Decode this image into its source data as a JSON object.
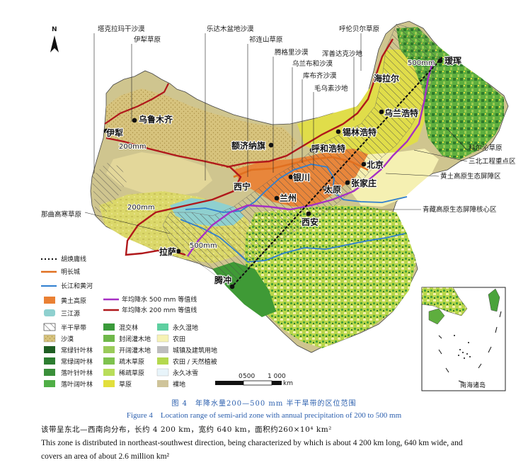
{
  "north": "N",
  "region_labels": {
    "taklimakan": "塔克拉玛干沙漠",
    "yili": "伊犁草原",
    "gurbantunggut": "乐达木盆地沙漠",
    "qilian": "祁连山草原",
    "tengger": "腾格里沙漠",
    "ulanbuh": "乌兰布和沙漠",
    "hobq": "库布齐沙漠",
    "muus": "毛乌素沙地",
    "hunlunbuir": "呼伦贝尔草原",
    "hunshandake": "浑善达克沙地",
    "horqin": "科尔沁草原",
    "three_north": "三北工程重点区",
    "loess_barrier": "黄土高原生态屏障区",
    "qt_barrier": "青藏高原生态屏障核心区",
    "naqu": "那曲高寒草原"
  },
  "cities": {
    "urumqi": "乌鲁木齐",
    "yining": "伊犁",
    "ejina": "额济纳旗",
    "hohhot": "呼和浩特",
    "xilinhot": "锡林浩特",
    "hailar": "海拉尔",
    "ulanhot": "乌兰浩特",
    "aihui": "瑷珲",
    "beijing": "北京",
    "zhangjiakou": "张家庄",
    "taiyuan": "太原",
    "yinchuan": "银川",
    "xining": "西宁",
    "lanzhou": "兰州",
    "xian": "西安",
    "lhasa": "拉萨",
    "tengchong": "腾冲"
  },
  "isohyets": {
    "a": "200mm",
    "b": "500mm",
    "c": "200mm",
    "d": "500mm",
    "e": "200mm"
  },
  "legend": {
    "hu_line": "胡焕庸线",
    "great_wall": "明长城",
    "rivers": "长江和黄河",
    "isohyet_500": "年均降水 500 mm 等值线",
    "isohyet_200": "年均降水 200 mm 等值线",
    "loess": "黄土高原",
    "sanjiangyuan": "三江源",
    "semi_arid": "半干旱带",
    "desert": "沙漠",
    "evergreen_needle": "常绿针叶林",
    "evergreen_broad": "常绿阔叶林",
    "deciduous_needle": "落叶针叶林",
    "deciduous_broad": "落叶阔叶林",
    "mixed_forest": "混交林",
    "closed_shrub": "封闭灌木地",
    "open_shrub": "开阔灌木地",
    "sparse_savanna": "疏木草原",
    "savanna": "稀疏草原",
    "grassland": "草原",
    "wetland": "永久湿地",
    "cropland": "农田",
    "urban": "城镇及建筑用地",
    "crop_mosaic": "农田 / 天然植被",
    "snow_ice": "永久冰雪",
    "barren": "裸地"
  },
  "scale": {
    "t0": "0",
    "t1": "500",
    "t2": "1 000",
    "unit": "km"
  },
  "inset_label": "南海诸岛",
  "caption_zh": "图 4　年降水量200—500 mm 半干旱带的区位范围",
  "caption_en": "Figure 4　Location range of semi-arid zone with annual precipitation of 200 to 500 mm",
  "desc_zh": "该带呈东北—西南向分布，长约 4 200 km，宽约 640 km，面积约260×10⁴ km²",
  "desc_en_1": "This zone is distributed in northeast-southwest direction, being characterized by which is about 4 200 km long, 640 km wide, and",
  "desc_en_2": "covers an area of about 2.6 million km²",
  "colors": {
    "desert": "#d8c98a",
    "barren": "#cfc49a",
    "grassland": "#e2df3c",
    "cropland": "#f6f2b4",
    "forest_dark": "#2f7a2c",
    "forest_mid": "#4aa33b",
    "forest_light": "#7cc04a",
    "loess": "#e97e2c",
    "sanjiangyuan": "#8fd0cf",
    "river": "#2f7fd0",
    "isohyet_500": "#a62fc4",
    "isohyet_200": "#b0181b",
    "great_wall": "#e07020",
    "hatch_stroke": "#555555",
    "hu_line": "#111111"
  }
}
